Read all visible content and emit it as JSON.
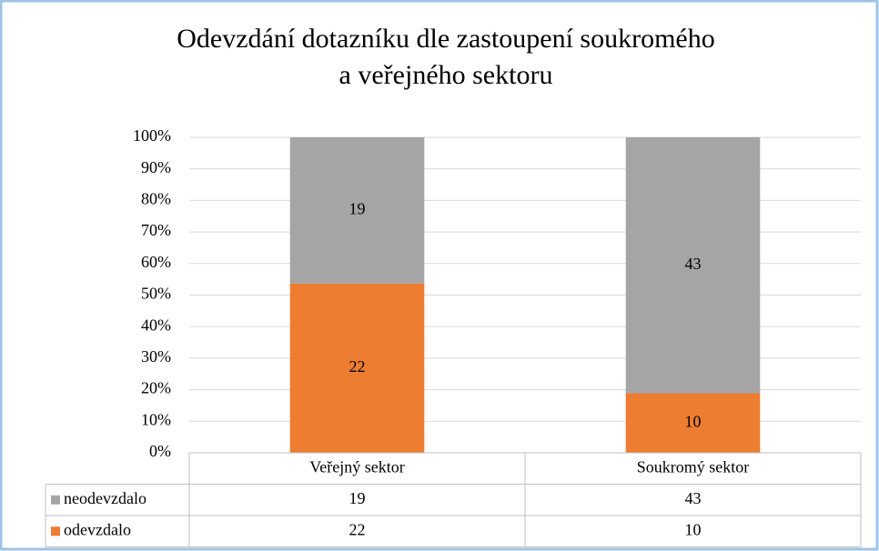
{
  "chart_data": {
    "type": "bar",
    "stack": "percent",
    "title": "Odevzdání dotazníku dle zastoupení soukromého a veřejného sektoru",
    "categories": [
      "Veřejný sektor",
      "Soukromý sektor"
    ],
    "series": [
      {
        "name": "odevzdalo",
        "color": "#ed7d31",
        "values": [
          22,
          10
        ]
      },
      {
        "name": "neodevzdalo",
        "color": "#a5a5a5",
        "values": [
          19,
          43
        ]
      }
    ],
    "ylim": [
      0,
      100
    ],
    "yticks": [
      {
        "value": 0,
        "label": "0%"
      },
      {
        "value": 10,
        "label": "10%"
      },
      {
        "value": 20,
        "label": "20%"
      },
      {
        "value": 30,
        "label": "30%"
      },
      {
        "value": 40,
        "label": "40%"
      },
      {
        "value": 50,
        "label": "50%"
      },
      {
        "value": 60,
        "label": "60%"
      },
      {
        "value": 70,
        "label": "70%"
      },
      {
        "value": 80,
        "label": "80%"
      },
      {
        "value": 90,
        "label": "90%"
      },
      {
        "value": 100,
        "label": "100%"
      }
    ],
    "grid": true,
    "data_table": true
  }
}
